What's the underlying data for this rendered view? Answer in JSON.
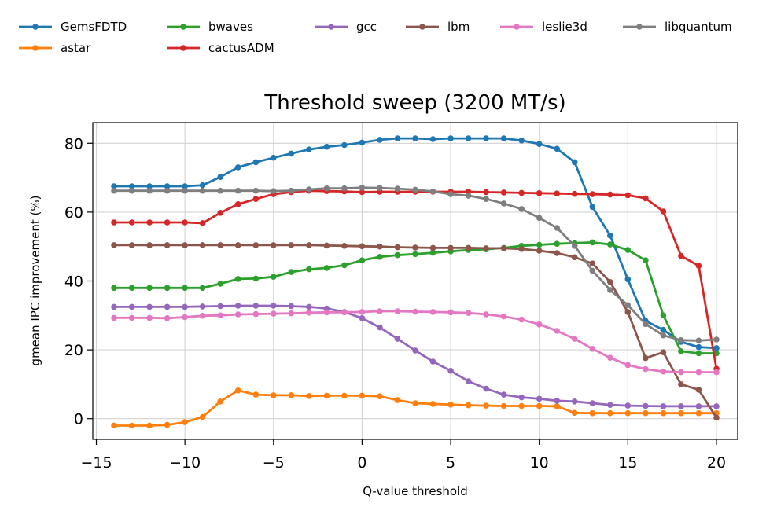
{
  "chart_data": {
    "type": "line",
    "title": "Threshold sweep (3200 MT/s)",
    "xlabel": "Q-value threshold",
    "ylabel": "gmean IPC improvement (%)",
    "xlim": [
      -15.2,
      21.2
    ],
    "ylim": [
      -6,
      86
    ],
    "xticks": [
      -15,
      -10,
      -5,
      0,
      5,
      10,
      15,
      20
    ],
    "xtick_labels": [
      "−15",
      "−10",
      "−5",
      "0",
      "5",
      "10",
      "15",
      "20"
    ],
    "yticks": [
      0,
      20,
      40,
      60,
      80
    ],
    "ytick_labels": [
      "0",
      "20",
      "40",
      "60",
      "80"
    ],
    "grid": true,
    "legend_position": "top, above plot, 6 columns",
    "x": [
      -14,
      -13,
      -12,
      -11,
      -10,
      -9,
      -8,
      -7,
      -6,
      -5,
      -4,
      -3,
      -2,
      -1,
      0,
      1,
      2,
      3,
      4,
      5,
      6,
      7,
      8,
      9,
      10,
      11,
      12,
      13,
      14,
      15,
      16,
      17,
      18,
      19,
      20
    ],
    "series": [
      {
        "name": "GemsFDTD",
        "color": "#1f77b4",
        "values": [
          67.5,
          67.5,
          67.5,
          67.5,
          67.5,
          67.8,
          70.2,
          73.0,
          74.5,
          75.8,
          77.0,
          78.2,
          79.0,
          79.5,
          80.2,
          81.0,
          81.4,
          81.4,
          81.2,
          81.4,
          81.4,
          81.4,
          81.4,
          80.8,
          79.8,
          78.4,
          74.5,
          61.5,
          53.2,
          40.5,
          28.4,
          25.8,
          22.3,
          20.8,
          20.5
        ]
      },
      {
        "name": "astar",
        "color": "#ff7f0e",
        "values": [
          -2.0,
          -2.0,
          -2.0,
          -1.8,
          -1.0,
          0.5,
          5.0,
          8.2,
          7.0,
          6.8,
          6.8,
          6.6,
          6.7,
          6.7,
          6.7,
          6.5,
          5.4,
          4.5,
          4.3,
          4.1,
          3.9,
          3.8,
          3.7,
          3.7,
          3.7,
          3.6,
          1.7,
          1.6,
          1.6,
          1.6,
          1.6,
          1.6,
          1.6,
          1.6,
          1.6
        ]
      },
      {
        "name": "bwaves",
        "color": "#2ca02c",
        "values": [
          38.0,
          38.0,
          38.0,
          38.0,
          38.0,
          38.0,
          39.2,
          40.6,
          40.7,
          41.2,
          42.6,
          43.4,
          43.8,
          44.6,
          46.0,
          47.0,
          47.5,
          47.8,
          48.2,
          48.6,
          49.0,
          49.2,
          49.6,
          50.2,
          50.5,
          50.8,
          51.0,
          51.2,
          50.6,
          49.0,
          46.0,
          30.0,
          19.6,
          19.0,
          19.0
        ]
      },
      {
        "name": "cactusADM",
        "color": "#d62728",
        "values": [
          57.0,
          57.0,
          57.0,
          57.0,
          57.0,
          56.8,
          59.8,
          62.3,
          63.8,
          65.2,
          65.8,
          66.2,
          66.1,
          66.0,
          65.8,
          65.9,
          65.9,
          65.9,
          65.9,
          65.9,
          65.9,
          65.8,
          65.7,
          65.6,
          65.5,
          65.4,
          65.3,
          65.2,
          65.1,
          64.9,
          64.0,
          60.2,
          47.3,
          44.4,
          14.5
        ]
      },
      {
        "name": "gcc",
        "color": "#9467bd",
        "values": [
          32.5,
          32.5,
          32.5,
          32.5,
          32.5,
          32.6,
          32.7,
          32.8,
          32.8,
          32.8,
          32.7,
          32.5,
          32.0,
          31.0,
          29.2,
          26.5,
          23.2,
          19.8,
          16.6,
          13.9,
          10.9,
          8.7,
          7.0,
          6.2,
          5.8,
          5.2,
          5.0,
          4.5,
          4.0,
          3.8,
          3.7,
          3.6,
          3.6,
          3.6,
          3.6
        ]
      },
      {
        "name": "lbm",
        "color": "#8c564b",
        "values": [
          50.4,
          50.4,
          50.4,
          50.4,
          50.4,
          50.4,
          50.4,
          50.4,
          50.4,
          50.4,
          50.4,
          50.4,
          50.3,
          50.2,
          50.1,
          50.0,
          49.8,
          49.7,
          49.6,
          49.6,
          49.6,
          49.5,
          49.5,
          49.3,
          48.8,
          48.1,
          46.9,
          45.1,
          39.7,
          31.0,
          17.6,
          19.3,
          10.0,
          8.4,
          0.3
        ]
      },
      {
        "name": "leslie3d",
        "color": "#e377c2",
        "values": [
          29.3,
          29.3,
          29.3,
          29.2,
          29.5,
          29.9,
          30.0,
          30.3,
          30.4,
          30.5,
          30.6,
          30.8,
          30.9,
          30.9,
          31.0,
          31.2,
          31.2,
          31.1,
          31.0,
          30.9,
          30.7,
          30.3,
          29.7,
          28.8,
          27.4,
          25.5,
          23.2,
          20.3,
          17.7,
          15.6,
          14.4,
          13.7,
          13.5,
          13.5,
          13.5
        ]
      },
      {
        "name": "libquantum",
        "color": "#7f7f7f",
        "values": [
          66.2,
          66.2,
          66.2,
          66.2,
          66.2,
          66.2,
          66.2,
          66.2,
          66.2,
          66.1,
          66.2,
          66.6,
          66.9,
          66.9,
          67.1,
          67.0,
          66.8,
          66.5,
          66.0,
          65.2,
          64.8,
          63.8,
          62.5,
          60.9,
          58.3,
          55.4,
          50.2,
          43.0,
          37.4,
          33.0,
          27.5,
          24.2,
          22.8,
          22.7,
          23.0
        ]
      }
    ]
  }
}
